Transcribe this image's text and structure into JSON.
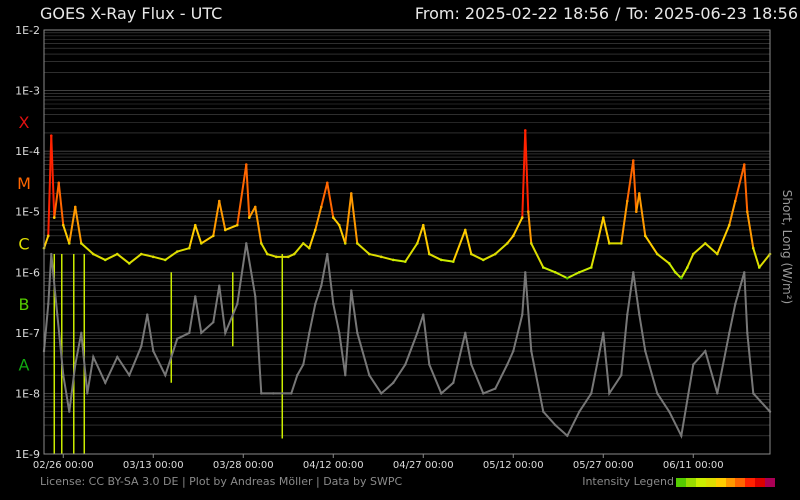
{
  "header": {
    "title": "GOES X-Ray Flux - UTC",
    "from_label": "From: 2025-02-22 18:56",
    "separator": "/",
    "to_label": "To: 2025-06-23 18:56"
  },
  "footer": {
    "license_line": "License: CC BY-SA 3.0 DE | Plot by Andreas Möller | Data by SWPC",
    "legend_label": "Intensity Legend"
  },
  "colors": {
    "background": "#000000",
    "grid": "#4a4a4a",
    "long_channel_scale": [
      "#55cc00",
      "#99dd00",
      "#ccee00",
      "#dddd00",
      "#ffcc00",
      "#ff9900",
      "#ff6600",
      "#ff2200",
      "#dd0000",
      "#aa0055"
    ],
    "short_channel": "#777777",
    "class_X": "#e01010",
    "class_M": "#ff6600",
    "class_C": "#dddd00",
    "class_B": "#55cc00",
    "class_A": "#11aa11"
  },
  "chart_data": {
    "type": "line",
    "title": "GOES X-Ray Flux - UTC",
    "ylabel": "Short, Long (W/m²)",
    "yscale": "log",
    "ylim": [
      1e-09,
      0.01
    ],
    "y_ticks": [
      "1E-2",
      "1E-3",
      "1E-4",
      "1E-5",
      "1E-6",
      "1E-7",
      "1E-8",
      "1E-9"
    ],
    "class_labels": [
      {
        "label": "X",
        "level": 0.0003
      },
      {
        "label": "M",
        "level": 3e-05
      },
      {
        "label": "C",
        "level": 3e-06
      },
      {
        "label": "B",
        "level": 3e-07
      },
      {
        "label": "A",
        "level": 3e-08
      }
    ],
    "xlim": [
      "2025-02-22 18:56",
      "2025-06-23 18:56"
    ],
    "x_ticks": [
      {
        "label": "02/26 00:00",
        "date": "2025-02-26 00:00"
      },
      {
        "label": "03/13 00:00",
        "date": "2025-03-13 00:00"
      },
      {
        "label": "03/28 00:00",
        "date": "2025-03-28 00:00"
      },
      {
        "label": "04/12 00:00",
        "date": "2025-04-12 00:00"
      },
      {
        "label": "04/27 00:00",
        "date": "2025-04-27 00:00"
      },
      {
        "label": "05/12 00:00",
        "date": "2025-05-12 00:00"
      },
      {
        "label": "05/27 00:00",
        "date": "2025-05-27 00:00"
      },
      {
        "label": "06/11 00:00",
        "date": "2025-06-11 00:00"
      }
    ],
    "grid": true,
    "series": [
      {
        "name": "Long",
        "points": [
          [
            "2025-02-22 18:56",
            2.5e-06
          ],
          [
            "2025-02-23 12:00",
            4e-06
          ],
          [
            "2025-02-24 00:00",
            0.00018
          ],
          [
            "2025-02-24 12:00",
            8e-06
          ],
          [
            "2025-02-25 06:00",
            3e-05
          ],
          [
            "2025-02-26 00:00",
            6e-06
          ],
          [
            "2025-02-27 00:00",
            3e-06
          ],
          [
            "2025-02-28 00:00",
            1.2e-05
          ],
          [
            "2025-03-01 00:00",
            3e-06
          ],
          [
            "2025-03-03 00:00",
            2e-06
          ],
          [
            "2025-03-05 00:00",
            1.6e-06
          ],
          [
            "2025-03-07 00:00",
            2e-06
          ],
          [
            "2025-03-09 00:00",
            1.4e-06
          ],
          [
            "2025-03-11 00:00",
            2e-06
          ],
          [
            "2025-03-13 00:00",
            1.8e-06
          ],
          [
            "2025-03-15 00:00",
            1.6e-06
          ],
          [
            "2025-03-17 00:00",
            2.2e-06
          ],
          [
            "2025-03-19 00:00",
            2.5e-06
          ],
          [
            "2025-03-20 00:00",
            6e-06
          ],
          [
            "2025-03-21 00:00",
            3e-06
          ],
          [
            "2025-03-23 00:00",
            4e-06
          ],
          [
            "2025-03-24 00:00",
            1.5e-05
          ],
          [
            "2025-03-25 00:00",
            5e-06
          ],
          [
            "2025-03-27 00:00",
            6e-06
          ],
          [
            "2025-03-28 12:00",
            6e-05
          ],
          [
            "2025-03-29 00:00",
            8e-06
          ],
          [
            "2025-03-30 00:00",
            1.2e-05
          ],
          [
            "2025-03-31 00:00",
            3e-06
          ],
          [
            "2025-04-01 00:00",
            2e-06
          ],
          [
            "2025-04-02 12:00",
            1.8e-06
          ],
          [
            "2025-04-04 12:00",
            1.8e-06
          ],
          [
            "2025-04-05 12:00",
            2e-06
          ],
          [
            "2025-04-07 00:00",
            3e-06
          ],
          [
            "2025-04-08 00:00",
            2.5e-06
          ],
          [
            "2025-04-09 00:00",
            5e-06
          ],
          [
            "2025-04-10 00:00",
            1.2e-05
          ],
          [
            "2025-04-11 00:00",
            3e-05
          ],
          [
            "2025-04-12 00:00",
            8e-06
          ],
          [
            "2025-04-13 00:00",
            6e-06
          ],
          [
            "2025-04-14 00:00",
            3e-06
          ],
          [
            "2025-04-15 00:00",
            2e-05
          ],
          [
            "2025-04-16 00:00",
            3e-06
          ],
          [
            "2025-04-18 00:00",
            2e-06
          ],
          [
            "2025-04-20 00:00",
            1.8e-06
          ],
          [
            "2025-04-22 00:00",
            1.6e-06
          ],
          [
            "2025-04-24 00:00",
            1.5e-06
          ],
          [
            "2025-04-26 00:00",
            3e-06
          ],
          [
            "2025-04-27 00:00",
            6e-06
          ],
          [
            "2025-04-28 00:00",
            2e-06
          ],
          [
            "2025-04-30 00:00",
            1.6e-06
          ],
          [
            "2025-05-02 00:00",
            1.5e-06
          ],
          [
            "2025-05-04 00:00",
            5e-06
          ],
          [
            "2025-05-05 00:00",
            2e-06
          ],
          [
            "2025-05-07 00:00",
            1.6e-06
          ],
          [
            "2025-05-09 00:00",
            2e-06
          ],
          [
            "2025-05-11 00:00",
            3e-06
          ],
          [
            "2025-05-12 00:00",
            4e-06
          ],
          [
            "2025-05-13 12:00",
            8e-06
          ],
          [
            "2025-05-14 00:00",
            0.00022
          ],
          [
            "2025-05-14 12:00",
            1e-05
          ],
          [
            "2025-05-15 00:00",
            3e-06
          ],
          [
            "2025-05-17 00:00",
            1.2e-06
          ],
          [
            "2025-05-19 00:00",
            1e-06
          ],
          [
            "2025-05-21 00:00",
            8e-07
          ],
          [
            "2025-05-23 00:00",
            1e-06
          ],
          [
            "2025-05-25 00:00",
            1.2e-06
          ],
          [
            "2025-05-26 00:00",
            3e-06
          ],
          [
            "2025-05-27 00:00",
            8e-06
          ],
          [
            "2025-05-28 00:00",
            3e-06
          ],
          [
            "2025-05-30 00:00",
            3e-06
          ],
          [
            "2025-05-31 00:00",
            1.5e-05
          ],
          [
            "2025-06-01 00:00",
            7e-05
          ],
          [
            "2025-06-01 12:00",
            1e-05
          ],
          [
            "2025-06-02 00:00",
            2e-05
          ],
          [
            "2025-06-03 00:00",
            4e-06
          ],
          [
            "2025-06-05 00:00",
            2e-06
          ],
          [
            "2025-06-07 00:00",
            1.4e-06
          ],
          [
            "2025-06-08 00:00",
            1e-06
          ],
          [
            "2025-06-09 00:00",
            8e-07
          ],
          [
            "2025-06-10 00:00",
            1.2e-06
          ],
          [
            "2025-06-11 00:00",
            2e-06
          ],
          [
            "2025-06-13 00:00",
            3e-06
          ],
          [
            "2025-06-15 00:00",
            2e-06
          ],
          [
            "2025-06-17 00:00",
            6e-06
          ],
          [
            "2025-06-18 00:00",
            1.5e-05
          ],
          [
            "2025-06-19 12:00",
            6e-05
          ],
          [
            "2025-06-20 00:00",
            1e-05
          ],
          [
            "2025-06-21 00:00",
            2.5e-06
          ],
          [
            "2025-06-22 00:00",
            1.2e-06
          ],
          [
            "2025-06-23 18:56",
            2e-06
          ]
        ]
      },
      {
        "name": "Short",
        "points": [
          [
            "2025-02-22 18:56",
            5e-08
          ],
          [
            "2025-02-23 12:00",
            3e-07
          ],
          [
            "2025-02-24 00:00",
            2e-06
          ],
          [
            "2025-02-25 00:00",
            2e-07
          ],
          [
            "2025-02-26 00:00",
            2e-08
          ],
          [
            "2025-02-27 00:00",
            5e-09
          ],
          [
            "2025-02-28 00:00",
            3e-08
          ],
          [
            "2025-03-01 00:00",
            1e-07
          ],
          [
            "2025-03-02 00:00",
            1e-08
          ],
          [
            "2025-03-03 00:00",
            4e-08
          ],
          [
            "2025-03-05 00:00",
            1.5e-08
          ],
          [
            "2025-03-07 00:00",
            4e-08
          ],
          [
            "2025-03-09 00:00",
            2e-08
          ],
          [
            "2025-03-11 00:00",
            6e-08
          ],
          [
            "2025-03-12 00:00",
            2e-07
          ],
          [
            "2025-03-13 00:00",
            5e-08
          ],
          [
            "2025-03-15 00:00",
            2e-08
          ],
          [
            "2025-03-17 00:00",
            8e-08
          ],
          [
            "2025-03-19 00:00",
            1e-07
          ],
          [
            "2025-03-20 00:00",
            4e-07
          ],
          [
            "2025-03-21 00:00",
            1e-07
          ],
          [
            "2025-03-23 00:00",
            1.5e-07
          ],
          [
            "2025-03-24 00:00",
            6e-07
          ],
          [
            "2025-03-25 00:00",
            1e-07
          ],
          [
            "2025-03-27 00:00",
            3e-07
          ],
          [
            "2025-03-28 12:00",
            3e-06
          ],
          [
            "2025-03-30 00:00",
            4e-07
          ],
          [
            "2025-03-31 00:00",
            1e-08
          ],
          [
            "2025-04-02 00:00",
            1e-08
          ],
          [
            "2025-04-05 00:00",
            1e-08
          ],
          [
            "2025-04-06 00:00",
            2e-08
          ],
          [
            "2025-04-07 00:00",
            3e-08
          ],
          [
            "2025-04-08 00:00",
            1e-07
          ],
          [
            "2025-04-09 00:00",
            3e-07
          ],
          [
            "2025-04-10 00:00",
            6e-07
          ],
          [
            "2025-04-11 00:00",
            2e-06
          ],
          [
            "2025-04-12 00:00",
            3e-07
          ],
          [
            "2025-04-13 00:00",
            1e-07
          ],
          [
            "2025-04-14 00:00",
            2e-08
          ],
          [
            "2025-04-15 00:00",
            5e-07
          ],
          [
            "2025-04-16 00:00",
            1e-07
          ],
          [
            "2025-04-18 00:00",
            2e-08
          ],
          [
            "2025-04-20 00:00",
            1e-08
          ],
          [
            "2025-04-22 00:00",
            1.5e-08
          ],
          [
            "2025-04-24 00:00",
            3e-08
          ],
          [
            "2025-04-26 00:00",
            1e-07
          ],
          [
            "2025-04-27 00:00",
            2e-07
          ],
          [
            "2025-04-28 00:00",
            3e-08
          ],
          [
            "2025-04-30 00:00",
            1e-08
          ],
          [
            "2025-05-02 00:00",
            1.5e-08
          ],
          [
            "2025-05-04 00:00",
            1e-07
          ],
          [
            "2025-05-05 00:00",
            3e-08
          ],
          [
            "2025-05-07 00:00",
            1e-08
          ],
          [
            "2025-05-09 00:00",
            1.2e-08
          ],
          [
            "2025-05-11 00:00",
            3e-08
          ],
          [
            "2025-05-12 00:00",
            5e-08
          ],
          [
            "2025-05-13 12:00",
            2e-07
          ],
          [
            "2025-05-14 00:00",
            1e-06
          ],
          [
            "2025-05-15 00:00",
            5e-08
          ],
          [
            "2025-05-17 00:00",
            5e-09
          ],
          [
            "2025-05-19 00:00",
            3e-09
          ],
          [
            "2025-05-21 00:00",
            2e-09
          ],
          [
            "2025-05-23 00:00",
            5e-09
          ],
          [
            "2025-05-25 00:00",
            1e-08
          ],
          [
            "2025-05-27 00:00",
            1e-07
          ],
          [
            "2025-05-28 00:00",
            1e-08
          ],
          [
            "2025-05-30 00:00",
            2e-08
          ],
          [
            "2025-05-31 00:00",
            2e-07
          ],
          [
            "2025-06-01 00:00",
            1e-06
          ],
          [
            "2025-06-02 00:00",
            2e-07
          ],
          [
            "2025-06-03 00:00",
            5e-08
          ],
          [
            "2025-06-05 00:00",
            1e-08
          ],
          [
            "2025-06-07 00:00",
            5e-09
          ],
          [
            "2025-06-09 00:00",
            2e-09
          ],
          [
            "2025-06-11 00:00",
            3e-08
          ],
          [
            "2025-06-13 00:00",
            5e-08
          ],
          [
            "2025-06-15 00:00",
            1e-08
          ],
          [
            "2025-06-17 00:00",
            1e-07
          ],
          [
            "2025-06-18 00:00",
            3e-07
          ],
          [
            "2025-06-19 12:00",
            1e-06
          ],
          [
            "2025-06-20 00:00",
            1e-07
          ],
          [
            "2025-06-21 00:00",
            1e-08
          ],
          [
            "2025-06-23 18:56",
            5e-09
          ]
        ]
      }
    ],
    "dropouts": [
      {
        "date": "2025-02-24 12:00",
        "from": 1e-09,
        "to": 2e-06
      },
      {
        "date": "2025-02-25 18:00",
        "from": 1e-09,
        "to": 2e-06
      },
      {
        "date": "2025-02-27 18:00",
        "from": 1e-09,
        "to": 2e-06
      },
      {
        "date": "2025-03-01 12:00",
        "from": 1e-09,
        "to": 2e-06
      },
      {
        "date": "2025-03-16 00:00",
        "from": 1.5e-08,
        "to": 1e-06
      },
      {
        "date": "2025-03-26 06:00",
        "from": 6e-08,
        "to": 1e-06
      },
      {
        "date": "2025-04-03 12:00",
        "from": 1.8e-09,
        "to": 2e-06
      }
    ]
  }
}
